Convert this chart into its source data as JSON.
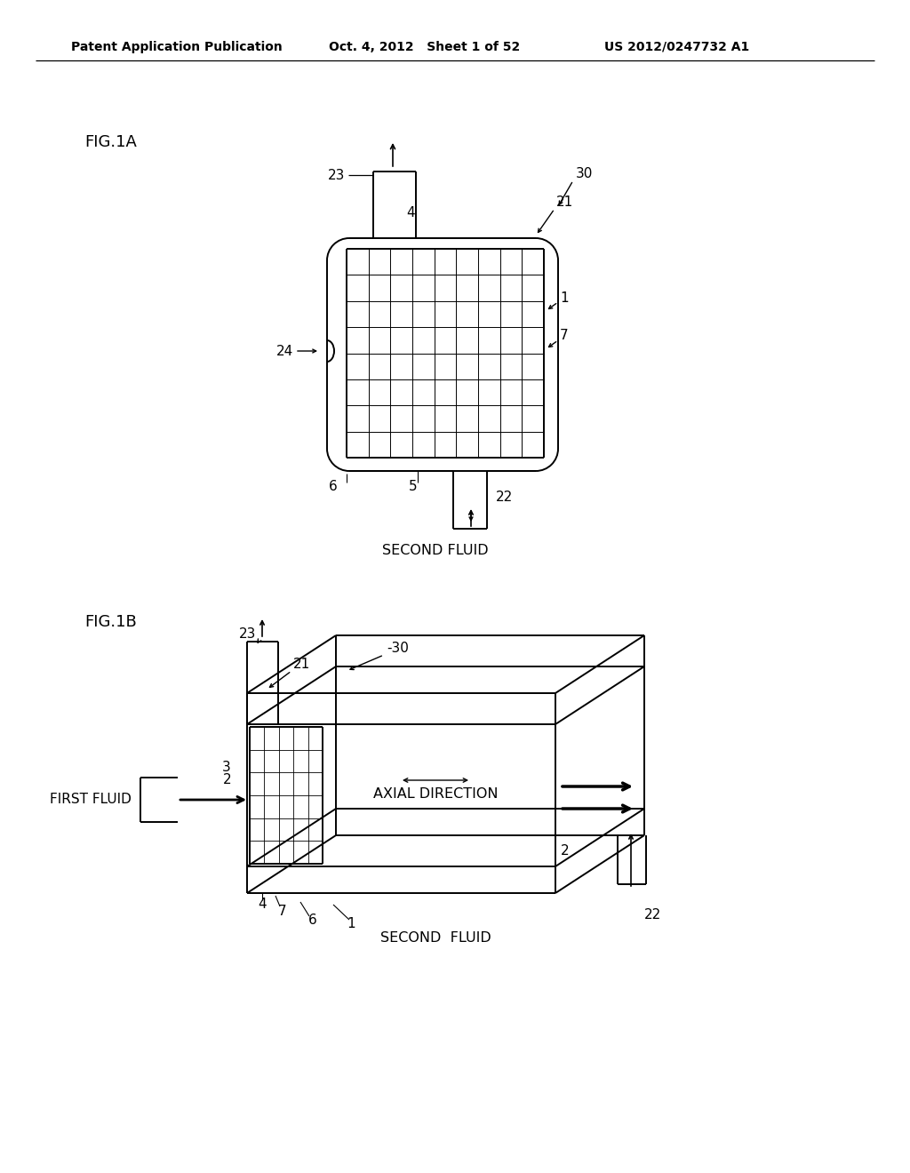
{
  "bg_color": "#ffffff",
  "text_color": "#000000",
  "line_color": "#000000",
  "header_left": "Patent Application Publication",
  "header_center": "Oct. 4, 2012   Sheet 1 of 52",
  "header_right": "US 2012/0247732 A1"
}
